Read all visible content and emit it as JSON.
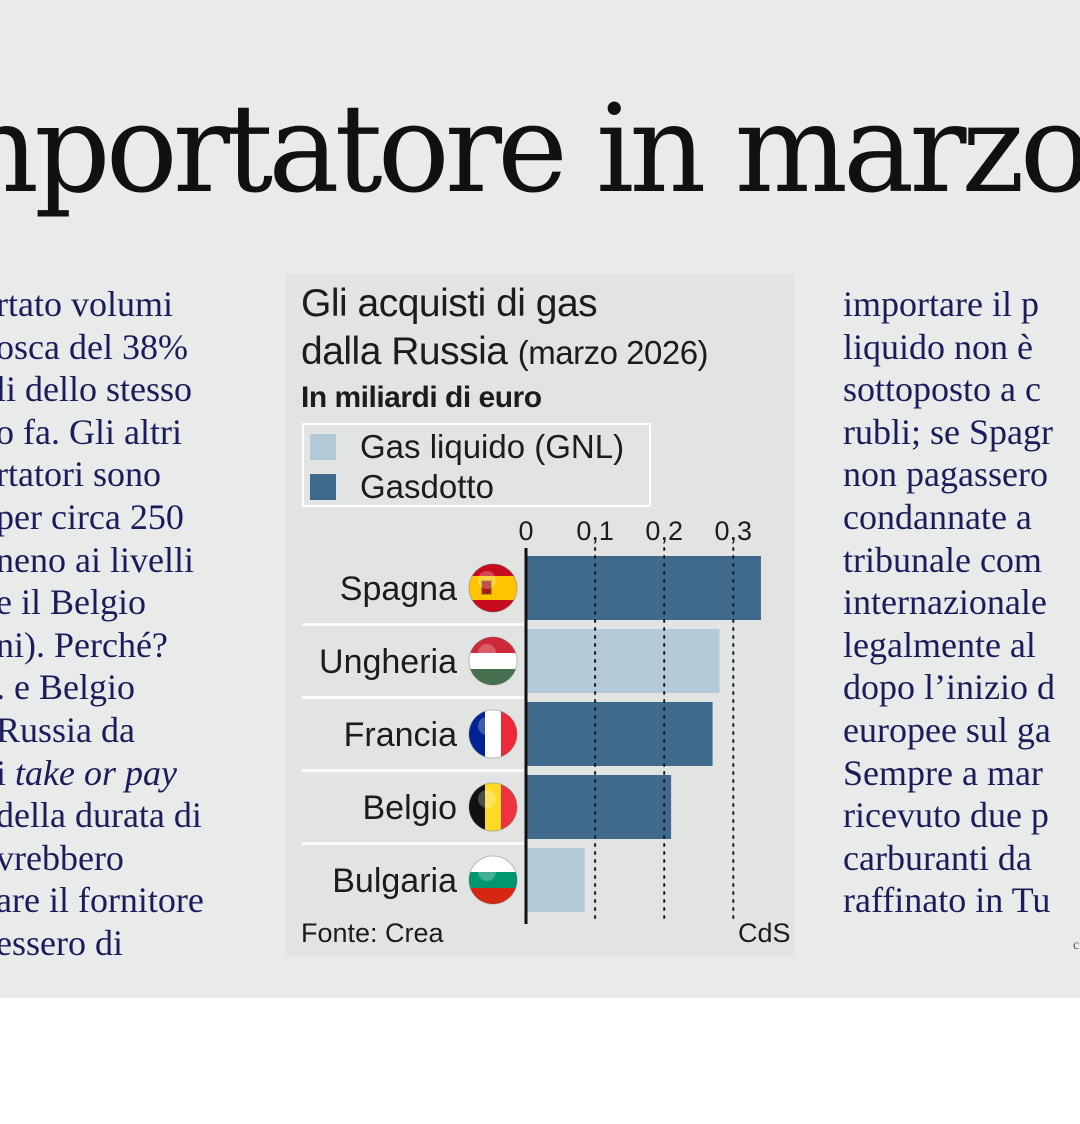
{
  "headline": "nportatore in marzo",
  "left_column": [
    "rtato volumi",
    "osca del 38%",
    "li dello stesso",
    "o fa. Gli altri",
    "rtatori sono",
    "per circa 250",
    "neno ai livelli",
    "e il Belgio",
    "ni). Perché?",
    ". e Belgio",
    "Russia da",
    "i take or pay",
    "della durata di",
    "vrebbero",
    "are il fornitore",
    "essero di"
  ],
  "right_column": [
    "importare il p",
    "liquido non è",
    "sottoposto a c",
    "rubli; se Spagr",
    "non pagassero",
    "condannate a",
    "tribunale com",
    "internazionale",
    "legalmente al",
    "dopo l’inizio d",
    "europee sul ga",
    "Sempre a mar",
    "ricevuto due p",
    "carburanti da",
    "raffinato in Tu"
  ],
  "corner_mark": "c",
  "chart": {
    "title_line1": "Gli acquisti di gas",
    "title_line2": "dalla Russia",
    "title_paren": "(marzo 2026)",
    "unit": "In miliardi di euro",
    "source": "Fonte: Crea",
    "credit": "CdS",
    "colors": {
      "gnl": "#b5cad8",
      "pipeline": "#3f6a8b",
      "background": "#e2e4e4"
    }
  },
  "chart_data": {
    "type": "bar",
    "orientation": "horizontal",
    "categories": [
      "Spagna",
      "Ungheria",
      "Francia",
      "Belgio",
      "Bulgaria"
    ],
    "values": [
      0.34,
      0.28,
      0.27,
      0.21,
      0.085
    ],
    "bar_type": [
      "Gasdotto",
      "Gas liquido (GNL)",
      "Gasdotto",
      "Gasdotto",
      "Gas liquido (GNL)"
    ],
    "legend": [
      "Gas liquido (GNL)",
      "Gasdotto"
    ],
    "x_ticks": [
      0,
      0.1,
      0.2,
      0.3
    ],
    "x_tick_labels": [
      "0",
      "0,1",
      "0,2",
      "0,3"
    ],
    "xlim": [
      0,
      0.34
    ],
    "grid": "dotted vertical lines at ticks",
    "legend_position": "top-left",
    "flags": [
      "spain-flag-icon",
      "hungary-flag-icon",
      "france-flag-icon",
      "belgium-flag-icon",
      "bulgaria-flag-icon"
    ]
  }
}
